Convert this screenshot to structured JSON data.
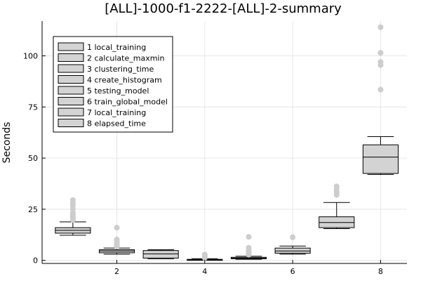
{
  "chart_data": {
    "type": "box",
    "title": "[ALL]-1000-f1-2222-[ALL]-2-summary",
    "xlabel": "",
    "ylabel": "Seconds",
    "xlim": [
      0.3,
      8.6
    ],
    "ylim": [
      -1.5,
      117
    ],
    "xticks": [
      2,
      4,
      6,
      8
    ],
    "yticks": [
      0,
      25,
      50,
      75,
      100
    ],
    "grid": true,
    "legend_position": "top-left",
    "box_fill": "#d3d3d3",
    "outlier_color": "#cdcdcd",
    "series": [
      {
        "name": "1 local_training",
        "x": 1,
        "whisker_low": 12.3,
        "q1": 13.3,
        "median": 14.7,
        "q3": 16.0,
        "whisker_high": 18.8,
        "outliers": [
          19.8,
          20.5,
          21.2,
          21.8,
          22.5,
          23.3,
          25.2,
          26.8,
          28.0,
          29.5
        ]
      },
      {
        "name": "2 calculate_maxmin",
        "x": 2,
        "whisker_low": 3.0,
        "q1": 3.7,
        "median": 4.6,
        "q3": 5.2,
        "whisker_high": 6.0,
        "outliers": [
          6.8,
          7.3,
          8.0,
          8.8,
          9.5,
          10.2,
          16.0
        ]
      },
      {
        "name": "3 clustering_time",
        "x": 3,
        "whisker_low": 0.8,
        "q1": 1.1,
        "median": 3.2,
        "q3": 4.8,
        "whisker_high": 5.2,
        "outliers": []
      },
      {
        "name": "4 create_histogram",
        "x": 4,
        "whisker_low": 0.1,
        "q1": 0.2,
        "median": 0.3,
        "q3": 0.5,
        "whisker_high": 0.8,
        "outliers": [
          1.2,
          1.8,
          2.3,
          2.9
        ]
      },
      {
        "name": "5 testing_model",
        "x": 5,
        "whisker_low": 0.5,
        "q1": 0.8,
        "median": 1.1,
        "q3": 1.5,
        "whisker_high": 2.0,
        "outliers": [
          2.8,
          3.5,
          4.2,
          5.0,
          6.2,
          11.5
        ]
      },
      {
        "name": "6 train_global_model",
        "x": 6,
        "whisker_low": 3.0,
        "q1": 3.5,
        "median": 4.6,
        "q3": 6.0,
        "whisker_high": 7.0,
        "outliers": [
          11.3
        ]
      },
      {
        "name": "7 local_training",
        "x": 7,
        "whisker_low": 15.5,
        "q1": 16.0,
        "median": 18.5,
        "q3": 21.3,
        "whisker_high": 28.3,
        "outliers": [
          32.0,
          33.5,
          34.8,
          36.2
        ]
      },
      {
        "name": "8 elapsed_time",
        "x": 8,
        "whisker_low": 42.0,
        "q1": 42.5,
        "median": 50.5,
        "q3": 56.5,
        "whisker_high": 60.5,
        "outliers": [
          83.5,
          95.5,
          97.0,
          101.5,
          114.0
        ]
      }
    ]
  }
}
